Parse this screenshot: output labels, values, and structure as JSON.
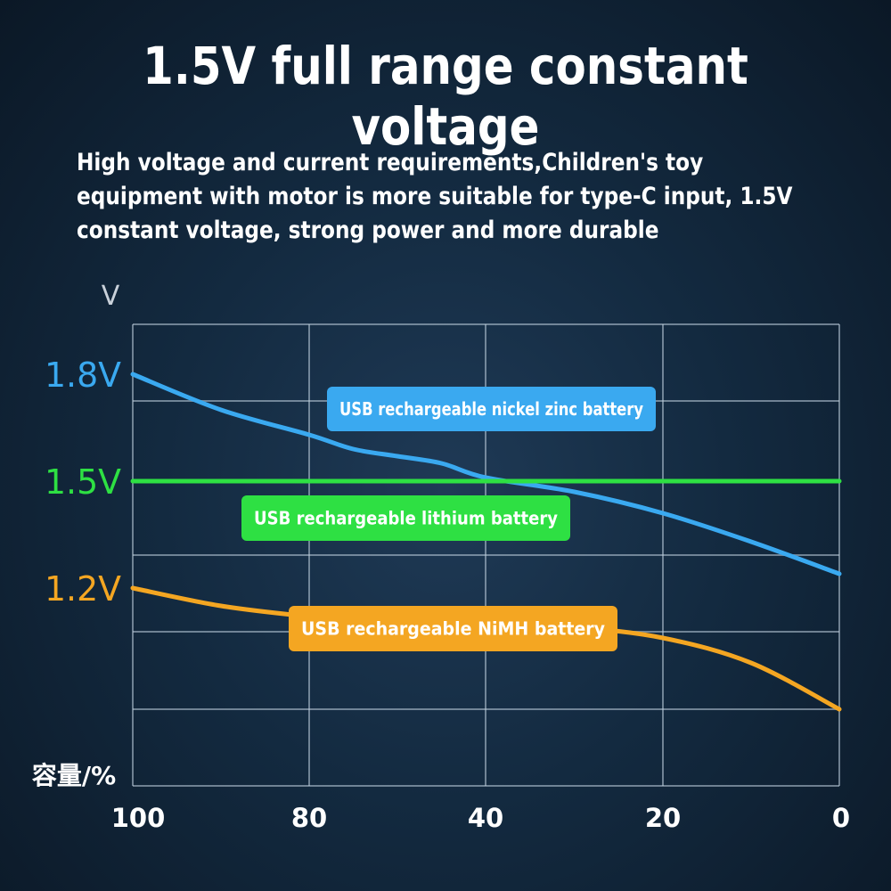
{
  "header": {
    "title": "1.5V full range constant voltage",
    "subtitle": "High voltage and current requirements,Children's toy equipment with motor is more suitable for type-C input, 1.5V constant voltage, strong power and more durable"
  },
  "chart_data": {
    "type": "line",
    "ylabel": "V",
    "xlabel": "容量/%",
    "x_ticks": [
      "100",
      "80",
      "40",
      "20",
      "0"
    ],
    "y_ticks": [
      {
        "label": "1.8V",
        "value": 1.8,
        "color": "#3aa9f0"
      },
      {
        "label": "1.5V",
        "value": 1.5,
        "color": "#2ee043"
      },
      {
        "label": "1.2V",
        "value": 1.2,
        "color": "#f4a622"
      }
    ],
    "grid": true,
    "series": [
      {
        "name": "USB rechargeable nickel zinc battery",
        "color": "#3aa9f0",
        "points": [
          [
            100,
            1.8
          ],
          [
            90,
            1.7
          ],
          [
            80,
            1.63
          ],
          [
            70,
            1.59
          ],
          [
            60,
            1.57
          ],
          [
            50,
            1.55
          ],
          [
            40,
            1.51
          ],
          [
            30,
            1.47
          ],
          [
            20,
            1.41
          ],
          [
            10,
            1.33
          ],
          [
            0,
            1.24
          ]
        ]
      },
      {
        "name": "USB rechargeable lithium battery",
        "color": "#2ee043",
        "points": [
          [
            100,
            1.5
          ],
          [
            0,
            1.5
          ]
        ]
      },
      {
        "name": "USB rechargeable NiMH battery",
        "color": "#f4a622",
        "points": [
          [
            100,
            1.2
          ],
          [
            90,
            1.15
          ],
          [
            80,
            1.12
          ],
          [
            70,
            1.11
          ],
          [
            60,
            1.105
          ],
          [
            50,
            1.105
          ],
          [
            40,
            1.1
          ],
          [
            30,
            1.09
          ],
          [
            20,
            1.06
          ],
          [
            10,
            0.99
          ],
          [
            0,
            0.86
          ]
        ]
      }
    ]
  }
}
